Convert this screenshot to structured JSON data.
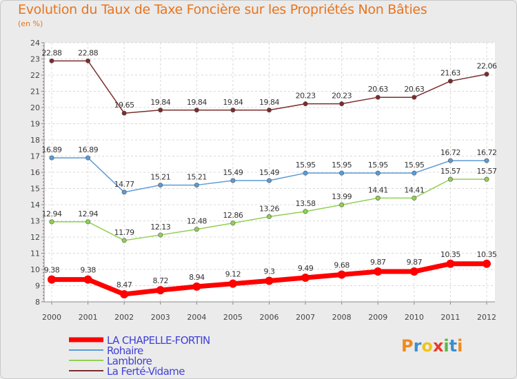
{
  "title": "Evolution du Taux de Taxe Foncière sur les Propriétés Non Bâties",
  "subtitle": "(en %)",
  "logo": "Proxiti",
  "logo_colors": [
    "#f08a1c",
    "#3a8fd0",
    "#f0c419",
    "#e83a2b",
    "#59b947",
    "#3a8fd0",
    "#f08a1c"
  ],
  "chart_data": {
    "type": "line",
    "x": [
      "2000",
      "2001",
      "2002",
      "2003",
      "2004",
      "2005",
      "2006",
      "2007",
      "2008",
      "2009",
      "2010",
      "2011",
      "2012"
    ],
    "ylim": [
      8,
      24
    ],
    "yticks": [
      "8",
      "9",
      "10",
      "11",
      "12",
      "13",
      "14",
      "15",
      "16",
      "17",
      "18",
      "19",
      "20",
      "21",
      "22",
      "23",
      "24"
    ],
    "grid": true,
    "legend_position": "bottom-left",
    "series": [
      {
        "name": "LA CHAPELLE-FORTIN",
        "color": "#ff0000",
        "values": [
          9.38,
          9.38,
          8.47,
          8.72,
          8.94,
          9.12,
          9.3,
          9.49,
          9.68,
          9.87,
          9.87,
          10.35,
          10.35
        ],
        "labels": [
          "9.38",
          "9.38",
          "8.47",
          "8.72",
          "8.94",
          "9.12",
          "9.3",
          "9.49",
          "9.68",
          "9.87",
          "9.87",
          "10.35",
          "10.35"
        ]
      },
      {
        "name": "Rohaire",
        "color": "#5b9bd5",
        "values": [
          16.89,
          16.89,
          14.77,
          15.21,
          15.21,
          15.49,
          15.49,
          15.95,
          15.95,
          15.95,
          15.95,
          16.72,
          16.72
        ],
        "labels": [
          "16.89",
          "16.89",
          "14.77",
          "15.21",
          "15.21",
          "15.49",
          "15.49",
          "15.95",
          "15.95",
          "15.95",
          "15.95",
          "16.72",
          "16.72"
        ]
      },
      {
        "name": "Lamblore",
        "color": "#8fd14f",
        "values": [
          12.94,
          12.94,
          11.79,
          12.13,
          12.48,
          12.86,
          13.26,
          13.58,
          13.99,
          14.41,
          14.41,
          15.57,
          15.57
        ],
        "labels": [
          "12.94",
          "12.94",
          "11.79",
          "12.13",
          "12.48",
          "12.86",
          "13.26",
          "13.58",
          "13.99",
          "14.41",
          "14.41",
          "15.57",
          "15.57"
        ]
      },
      {
        "name": "La Ferté-Vidame",
        "color": "#7b2c2c",
        "values": [
          22.88,
          22.88,
          19.65,
          19.84,
          19.84,
          19.84,
          19.84,
          20.23,
          20.23,
          20.63,
          20.63,
          21.63,
          22.06
        ],
        "labels": [
          "22.88",
          "22.88",
          "19.65",
          "19.84",
          "19.84",
          "19.84",
          "19.84",
          "20.23",
          "20.23",
          "20.63",
          "20.63",
          "21.63",
          "22.06"
        ]
      }
    ]
  }
}
